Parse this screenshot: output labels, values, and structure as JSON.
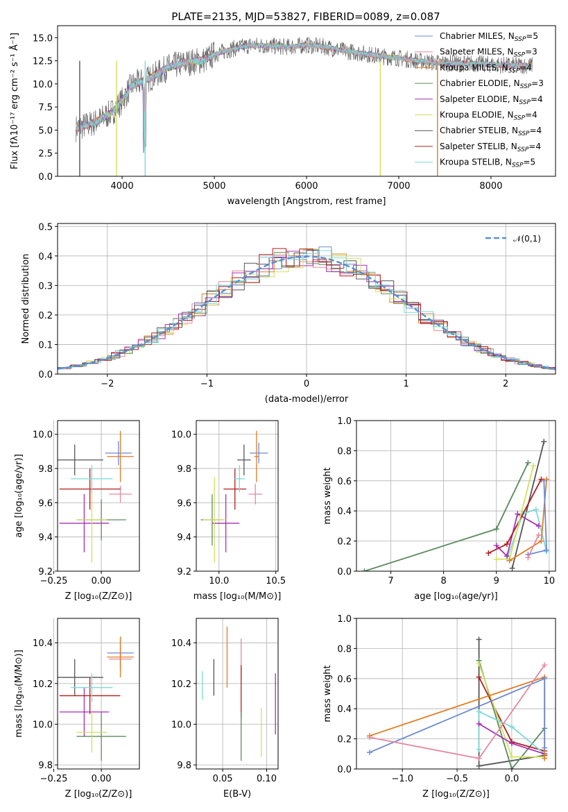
{
  "title": "PLATE=2135, MJD=53827, FIBERID=0089, z=0.087",
  "colors": {
    "Chabrier MILES": "#6a8ad4",
    "Salpeter MILES": "#e5879f",
    "Kroupa MILES": "#e07b22",
    "Chabrier ELODIE": "#5a8a5e",
    "Salpeter ELODIE": "#a82bb5",
    "Kroupa ELODIE": "#d2e05c",
    "Chabrier STELIB": "#555555",
    "Salpeter STELIB": "#b01c1c",
    "Kroupa STELIB": "#7adbd9"
  },
  "chart_data": [
    {
      "id": "spectrum",
      "type": "line",
      "title": "PLATE=2135, MJD=53827, FIBERID=0089, z=0.087",
      "xlabel": "wavelength [Angstrom, rest frame]",
      "ylabel": "Flux [fλ10⁻¹⁷ erg cm⁻² s⁻¹ Å⁻¹]",
      "xlim": [
        3300,
        8700
      ],
      "ylim": [
        0,
        16.3
      ],
      "xticks": [
        4000,
        5000,
        6000,
        7000,
        8000
      ],
      "yticks": [
        0.0,
        2.5,
        5.0,
        7.5,
        10.0,
        12.5,
        15.0
      ],
      "legend_position": "upper-right",
      "legend": [
        "Chabrier MILES, N_SSP=5",
        "Salpeter MILES, N_SSP=3",
        "Kroupa MILES, N_SSP=4",
        "Chabrier ELODIE, N_SSP=3",
        "Salpeter ELODIE, N_SSP=4",
        "Kroupa ELODIE, N_SSP=4",
        "Chabrier STELIB, N_SSP=4",
        "Salpeter STELIB, N_SSP=4",
        "Kroupa STELIB, N_SSP=5"
      ],
      "continuum": {
        "x": [
          3500,
          3700,
          3900,
          4000,
          4100,
          4300,
          4500,
          4700,
          4900,
          5000,
          5200,
          5400,
          5600,
          5800,
          6000,
          6200,
          6400,
          6600,
          6800,
          7000,
          7200,
          7400,
          7600,
          7800,
          8000,
          8200,
          8400
        ],
        "y": [
          5.2,
          5.8,
          7.0,
          8.2,
          9.8,
          10.6,
          11.8,
          12.3,
          12.6,
          13.2,
          13.8,
          14.2,
          14.1,
          14.0,
          14.2,
          14.0,
          13.6,
          13.3,
          13.0,
          12.8,
          12.5,
          12.3,
          12.2,
          12.2,
          12.1,
          12.0,
          12.0
        ]
      }
    },
    {
      "id": "residuals",
      "type": "line",
      "xlabel": "(data-model)/error",
      "ylabel": "Normed distribution",
      "xlim": [
        -2.5,
        2.5
      ],
      "ylim": [
        0,
        0.51
      ],
      "xticks": [
        -2,
        -1,
        0,
        1,
        2
      ],
      "yticks": [
        0.0,
        0.1,
        0.2,
        0.3,
        0.4,
        0.5
      ],
      "legend_position": "upper-right",
      "legend": [
        "𝒩(0,1)"
      ],
      "gaussian": {
        "mean": 0,
        "sigma": 1,
        "color": "#5b8fd6"
      }
    },
    {
      "id": "age-vs-Z",
      "type": "scatter",
      "xlabel": "Z [log₁₀(Z/Z⊙)]",
      "ylabel": "age  [log₁₀(age/yr)]",
      "xlim": [
        -0.23,
        0.2
      ],
      "ylim": [
        9.2,
        10.08
      ],
      "xticks": [
        -0.25,
        0.0
      ],
      "yticks": [
        9.2,
        9.4,
        9.6,
        9.8,
        10.0
      ],
      "points": [
        {
          "model": "Chabrier MILES",
          "x": 0.09,
          "xerr": 0.07,
          "y": 9.89,
          "yerr": 0.07
        },
        {
          "model": "Salpeter MILES",
          "x": 0.1,
          "xerr": 0.06,
          "y": 9.65,
          "yerr": 0.05
        },
        {
          "model": "Kroupa MILES",
          "x": 0.1,
          "xerr": 0.07,
          "y": 9.87,
          "yerr": 0.15
        },
        {
          "model": "Chabrier ELODIE",
          "x": 0.0,
          "xerr": 0.13,
          "y": 9.5,
          "yerr": 0.12
        },
        {
          "model": "Salpeter ELODIE",
          "x": -0.09,
          "xerr": 0.13,
          "y": 9.48,
          "yerr": 0.17
        },
        {
          "model": "Kroupa ELODIE",
          "x": -0.05,
          "xerr": 0.08,
          "y": 9.5,
          "yerr": 0.25
        },
        {
          "model": "Chabrier STELIB",
          "x": -0.14,
          "xerr": 0.15,
          "y": 9.85,
          "yerr": 0.09
        },
        {
          "model": "Salpeter STELIB",
          "x": -0.06,
          "xerr": 0.16,
          "y": 9.68,
          "yerr": 0.12
        },
        {
          "model": "Kroupa STELIB",
          "x": -0.05,
          "xerr": 0.11,
          "y": 9.74,
          "yerr": 0.08
        }
      ]
    },
    {
      "id": "age-vs-mass",
      "type": "scatter",
      "xlabel": "mass [log₁₀(M/M⊙)]",
      "xlim": [
        9.8,
        10.52
      ],
      "ylim": [
        9.2,
        10.08
      ],
      "xticks": [
        10.0,
        10.5
      ],
      "yticks": [
        9.2,
        9.4,
        9.6,
        9.8,
        10.0
      ],
      "points": [
        {
          "model": "Chabrier MILES",
          "x": 10.35,
          "xerr": 0.08,
          "y": 9.89,
          "yerr": 0.06
        },
        {
          "model": "Salpeter MILES",
          "x": 10.32,
          "xerr": 0.06,
          "y": 9.65,
          "yerr": 0.06
        },
        {
          "model": "Kroupa MILES",
          "x": 10.33,
          "xerr": 0.02,
          "y": 9.87,
          "yerr": 0.15
        },
        {
          "model": "Chabrier ELODIE",
          "x": 9.94,
          "xerr": 0.1,
          "y": 9.5,
          "yerr": 0.15
        },
        {
          "model": "Salpeter ELODIE",
          "x": 10.06,
          "xerr": 0.12,
          "y": 9.48,
          "yerr": 0.17
        },
        {
          "model": "Kroupa ELODIE",
          "x": 9.96,
          "xerr": 0.1,
          "y": 9.5,
          "yerr": 0.25
        },
        {
          "model": "Chabrier STELIB",
          "x": 10.22,
          "xerr": 0.06,
          "y": 9.85,
          "yerr": 0.09
        },
        {
          "model": "Salpeter STELIB",
          "x": 10.14,
          "xerr": 0.1,
          "y": 9.68,
          "yerr": 0.12
        },
        {
          "model": "Kroupa STELIB",
          "x": 10.18,
          "xerr": 0.05,
          "y": 9.74,
          "yerr": 0.08
        }
      ]
    },
    {
      "id": "weights-vs-age",
      "type": "line",
      "xlabel": "age  [log₁₀(age/yr)]",
      "ylabel": "mass weight",
      "xlim": [
        6.35,
        10.12
      ],
      "ylim": [
        0,
        1.0
      ],
      "xticks": [
        7,
        8,
        9,
        10
      ],
      "yticks": [
        0.0,
        0.2,
        0.4,
        0.6,
        0.8,
        1.0
      ],
      "series": [
        {
          "model": "Chabrier ELODIE",
          "x": [
            6.5,
            9.0,
            9.6
          ],
          "y": [
            0.0,
            0.28,
            0.72
          ]
        },
        {
          "model": "Chabrier STELIB",
          "x": [
            9.3,
            9.9
          ],
          "y": [
            0.02,
            0.86
          ]
        },
        {
          "model": "Kroupa STELIB",
          "x": [
            9.2,
            9.5,
            9.75,
            9.95
          ],
          "y": [
            0.08,
            0.38,
            0.41,
            0.13
          ]
        },
        {
          "model": "Salpeter ELODIE",
          "x": [
            9.0,
            9.2,
            9.4,
            9.8
          ],
          "y": [
            0.17,
            0.1,
            0.38,
            0.3
          ]
        },
        {
          "model": "Salpeter STELIB",
          "x": [
            8.85,
            9.2,
            9.85
          ],
          "y": [
            0.12,
            0.18,
            0.61
          ]
        },
        {
          "model": "Kroupa ELODIE",
          "x": [
            9.0,
            9.25,
            9.7
          ],
          "y": [
            0.08,
            0.08,
            0.7
          ]
        },
        {
          "model": "Kroupa MILES",
          "x": [
            9.25,
            9.85,
            9.95
          ],
          "y": [
            0.07,
            0.2,
            0.61
          ]
        },
        {
          "model": "Chabrier MILES",
          "x": [
            9.6,
            9.95,
            9.9
          ],
          "y": [
            0.11,
            0.14,
            0.6
          ]
        },
        {
          "model": "Salpeter MILES",
          "x": [
            9.6,
            9.8
          ],
          "y": [
            0.09,
            0.24
          ]
        }
      ]
    },
    {
      "id": "mass-vs-Z",
      "type": "scatter",
      "xlabel": "Z [log₁₀(Z/Z⊙)]",
      "ylabel": "mass [log₁₀(M/M⊙)]",
      "xlim": [
        -0.23,
        0.2
      ],
      "ylim": [
        9.78,
        10.52
      ],
      "xticks": [
        -0.25,
        0.0
      ],
      "yticks": [
        9.8,
        10.0,
        10.2,
        10.4
      ],
      "points": [
        {
          "model": "Chabrier MILES",
          "x": 0.1,
          "xerr": 0.07,
          "y": 10.35,
          "yerr": 0.08
        },
        {
          "model": "Salpeter MILES",
          "x": 0.1,
          "xerr": 0.06,
          "y": 10.32,
          "yerr": 0.06
        },
        {
          "model": "Kroupa MILES",
          "x": 0.1,
          "xerr": 0.07,
          "y": 10.33,
          "yerr": 0.1
        },
        {
          "model": "Chabrier ELODIE",
          "x": 0.0,
          "xerr": 0.13,
          "y": 9.94,
          "yerr": 0.12
        },
        {
          "model": "Salpeter ELODIE",
          "x": -0.09,
          "xerr": 0.13,
          "y": 10.06,
          "yerr": 0.12
        },
        {
          "model": "Kroupa ELODIE",
          "x": -0.05,
          "xerr": 0.08,
          "y": 9.96,
          "yerr": 0.1
        },
        {
          "model": "Chabrier STELIB",
          "x": -0.14,
          "xerr": 0.15,
          "y": 10.23,
          "yerr": 0.09
        },
        {
          "model": "Salpeter STELIB",
          "x": -0.06,
          "xerr": 0.16,
          "y": 10.14,
          "yerr": 0.09
        },
        {
          "model": "Kroupa STELIB",
          "x": -0.05,
          "xerr": 0.11,
          "y": 10.18,
          "yerr": 0.07
        }
      ]
    },
    {
      "id": "mass-vs-EBV",
      "type": "scatter",
      "xlabel": "E(B-V)",
      "xlim": [
        0.02,
        0.113
      ],
      "ylim": [
        9.78,
        10.52
      ],
      "xticks": [
        0.05,
        0.1
      ],
      "yticks": [
        9.8,
        10.0,
        10.2,
        10.4
      ],
      "points": [
        {
          "model": "Kroupa STELIB",
          "x": 0.027,
          "y": 10.19,
          "yerr": 0.07
        },
        {
          "model": "Chabrier STELIB",
          "x": 0.04,
          "y": 10.23,
          "yerr": 0.09
        },
        {
          "model": "Kroupa MILES",
          "x": 0.055,
          "y": 10.33,
          "yerr": 0.15
        },
        {
          "model": "Salpeter MILES",
          "x": 0.071,
          "y": 10.32,
          "yerr": 0.1
        },
        {
          "model": "Salpeter STELIB",
          "x": 0.071,
          "y": 10.16,
          "yerr": 0.13
        },
        {
          "model": "Chabrier ELODIE",
          "x": 0.071,
          "y": 9.94,
          "yerr": 0.12
        },
        {
          "model": "Kroupa ELODIE",
          "x": 0.094,
          "y": 9.96,
          "yerr": 0.12
        },
        {
          "model": "Salpeter ELODIE",
          "x": 0.11,
          "y": 10.1,
          "yerr": 0.15
        }
      ]
    },
    {
      "id": "weights-vs-Z",
      "type": "line",
      "xlabel": "Z [log₁₀(Z/Z⊙)]",
      "ylabel": "mass weight",
      "xlim": [
        -1.42,
        0.4
      ],
      "ylim": [
        0,
        1.0
      ],
      "xticks": [
        -1.0,
        -0.5,
        0.0
      ],
      "yticks": [
        0.0,
        0.2,
        0.4,
        0.6,
        0.8,
        1.0
      ],
      "series": [
        {
          "model": "Chabrier STELIB",
          "x": [
            -0.3,
            -0.3,
            0.3
          ],
          "y": [
            0.86,
            0.02,
            0.09
          ]
        },
        {
          "model": "Chabrier ELODIE",
          "x": [
            -0.3,
            0.0,
            0.3
          ],
          "y": [
            0.72,
            0.0,
            0.27
          ]
        },
        {
          "model": "Salpeter STELIB",
          "x": [
            -0.3,
            0.0,
            0.3
          ],
          "y": [
            0.61,
            0.18,
            0.12
          ]
        },
        {
          "model": "Kroupa ELODIE",
          "x": [
            -0.3,
            0.0,
            0.3
          ],
          "y": [
            0.7,
            0.08,
            0.08
          ]
        },
        {
          "model": "Kroupa STELIB",
          "x": [
            -0.3,
            -0.3,
            0.0,
            0.3
          ],
          "y": [
            0.13,
            0.38,
            0.28,
            0.1
          ]
        },
        {
          "model": "Salpeter ELODIE",
          "x": [
            -0.3,
            0.0,
            0.3
          ],
          "y": [
            0.3,
            0.17,
            0.1
          ]
        },
        {
          "model": "Kroupa MILES",
          "x": [
            -1.3,
            0.3,
            0.3
          ],
          "y": [
            0.22,
            0.61,
            0.07
          ]
        },
        {
          "model": "Chabrier MILES",
          "x": [
            -1.3,
            0.3,
            0.3
          ],
          "y": [
            0.11,
            0.6,
            0.14
          ]
        },
        {
          "model": "Salpeter MILES",
          "x": [
            -1.3,
            -0.3,
            0.3
          ],
          "y": [
            0.21,
            0.07,
            0.69
          ]
        }
      ]
    }
  ]
}
